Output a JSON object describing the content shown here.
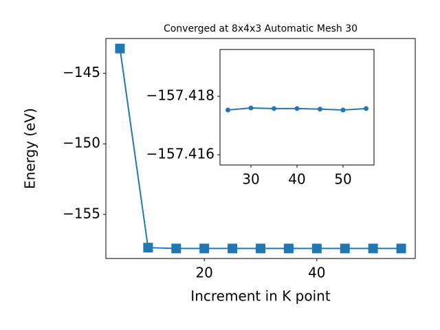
{
  "chart_data": [
    {
      "type": "line",
      "title": "Converged at 8x4x3 Automatic Mesh 30",
      "x_label": "Increment in K point",
      "y_label": "Energy (eV)",
      "marker": "square",
      "x": [
        5,
        10,
        15,
        20,
        25,
        30,
        35,
        40,
        45,
        50,
        55
      ],
      "series": [
        {
          "color": "#1f77b4",
          "values": [
            -143.24,
            -157.36,
            -157.42,
            -157.42,
            -157.42,
            -157.42,
            -157.42,
            -157.42,
            -157.42,
            -157.42,
            -157.42
          ]
        }
      ],
      "xlim": [
        2.5,
        57.5
      ],
      "ylim": [
        -158.13,
        -142.53
      ],
      "xticks": [
        20,
        40
      ],
      "yticks": [
        {
          "value": -145,
          "label": "−145"
        },
        {
          "value": -150,
          "label": "−150"
        },
        {
          "value": -155,
          "label": "−155"
        }
      ]
    },
    {
      "type": "line",
      "marker": "circle",
      "x": [
        25,
        30,
        35,
        40,
        45,
        50,
        55
      ],
      "series": [
        {
          "color": "#1f77b4",
          "values": [
            -157.41753,
            -157.4176,
            -157.41758,
            -157.41758,
            -157.41756,
            -157.41753,
            -157.41758
          ]
        }
      ],
      "xlim": [
        23.28,
        56.72
      ],
      "ylim": [
        -157.41565,
        -157.4196
      ],
      "xticks": [
        30,
        40,
        50
      ],
      "yticks": [
        {
          "value": -157.418,
          "label": "−157.418"
        },
        {
          "value": -157.416,
          "label": "−157.416"
        }
      ]
    }
  ]
}
